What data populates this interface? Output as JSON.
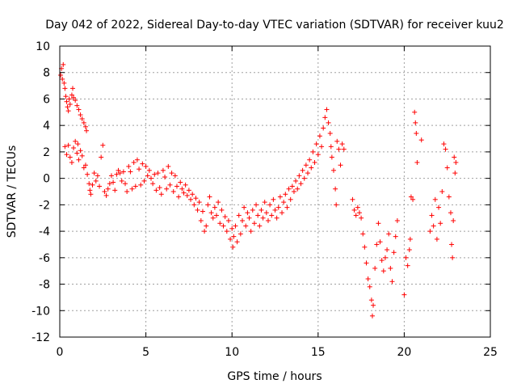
{
  "chart_data": {
    "type": "scatter",
    "title": "Day 042 of 2022, Sidereal Day-to-day VTEC variation (SDTVAR) for receiver kuu2",
    "xlabel": "GPS time / hours",
    "ylabel": "SDTVAR / TECUs",
    "xlim": [
      0,
      25
    ],
    "ylim": [
      -12,
      10
    ],
    "xticks": [
      0,
      5,
      10,
      15,
      20,
      25
    ],
    "yticks": [
      -12,
      -10,
      -8,
      -6,
      -4,
      -2,
      0,
      2,
      4,
      6,
      8,
      10
    ],
    "xtick_labels": [
      "0",
      "5",
      "10",
      "15",
      "20",
      "25"
    ],
    "ytick_labels": [
      "-12",
      "-10",
      "-8",
      "-6",
      "-4",
      "-2",
      "0",
      "2",
      "4",
      "6",
      "8",
      "10"
    ],
    "grid": true,
    "marker": "+",
    "color": "#ff0000",
    "series": [
      {
        "name": "kuu2",
        "points": [
          [
            0.05,
            7.8
          ],
          [
            0.1,
            8.3
          ],
          [
            0.15,
            7.5
          ],
          [
            0.2,
            8.6
          ],
          [
            0.25,
            7.2
          ],
          [
            0.3,
            6.8
          ],
          [
            0.35,
            6.2
          ],
          [
            0.4,
            5.8
          ],
          [
            0.45,
            5.4
          ],
          [
            0.5,
            5.1
          ],
          [
            0.55,
            6.0
          ],
          [
            0.6,
            5.6
          ],
          [
            0.7,
            6.3
          ],
          [
            0.75,
            6.8
          ],
          [
            0.8,
            6.1
          ],
          [
            0.9,
            5.9
          ],
          [
            1.0,
            5.5
          ],
          [
            1.1,
            5.2
          ],
          [
            1.2,
            4.8
          ],
          [
            1.3,
            4.5
          ],
          [
            1.4,
            4.2
          ],
          [
            1.5,
            3.9
          ],
          [
            1.55,
            3.6
          ],
          [
            0.3,
            2.4
          ],
          [
            0.4,
            1.8
          ],
          [
            0.5,
            2.5
          ],
          [
            0.6,
            1.6
          ],
          [
            0.7,
            1.2
          ],
          [
            0.8,
            2.3
          ],
          [
            0.9,
            2.8
          ],
          [
            1.0,
            1.9
          ],
          [
            1.05,
            2.6
          ],
          [
            1.1,
            1.4
          ],
          [
            1.2,
            2.1
          ],
          [
            1.3,
            1.7
          ],
          [
            1.4,
            0.8
          ],
          [
            1.5,
            1.0
          ],
          [
            1.6,
            0.3
          ],
          [
            1.7,
            -0.4
          ],
          [
            1.75,
            -0.9
          ],
          [
            1.8,
            -1.2
          ],
          [
            1.9,
            -0.5
          ],
          [
            2.0,
            0.4
          ],
          [
            2.1,
            -0.2
          ],
          [
            2.2,
            0.2
          ],
          [
            2.3,
            -0.6
          ],
          [
            2.4,
            1.6
          ],
          [
            2.5,
            2.5
          ],
          [
            2.6,
            -1.0
          ],
          [
            2.7,
            -1.3
          ],
          [
            2.8,
            -0.8
          ],
          [
            2.9,
            -0.4
          ],
          [
            3.0,
            0.2
          ],
          [
            3.1,
            -0.3
          ],
          [
            3.2,
            -0.9
          ],
          [
            3.3,
            0.3
          ],
          [
            3.4,
            0.6
          ],
          [
            3.5,
            0.4
          ],
          [
            3.6,
            -0.2
          ],
          [
            3.7,
            0.5
          ],
          [
            3.8,
            -0.4
          ],
          [
            3.9,
            -1.0
          ],
          [
            4.0,
            0.9
          ],
          [
            4.1,
            0.5
          ],
          [
            4.2,
            -0.8
          ],
          [
            4.3,
            1.2
          ],
          [
            4.4,
            -0.6
          ],
          [
            4.5,
            1.4
          ],
          [
            4.6,
            0.7
          ],
          [
            4.7,
            -0.5
          ],
          [
            4.8,
            1.1
          ],
          [
            4.9,
            -0.2
          ],
          [
            5.0,
            0.9
          ],
          [
            5.1,
            0.2
          ],
          [
            5.2,
            0.6
          ],
          [
            5.3,
            0.0
          ],
          [
            5.4,
            -0.4
          ],
          [
            5.5,
            0.3
          ],
          [
            5.6,
            -0.9
          ],
          [
            5.7,
            0.4
          ],
          [
            5.8,
            -0.7
          ],
          [
            5.9,
            -1.2
          ],
          [
            6.0,
            0.6
          ],
          [
            6.1,
            0.1
          ],
          [
            6.2,
            -0.8
          ],
          [
            6.3,
            0.9
          ],
          [
            6.4,
            -0.5
          ],
          [
            6.5,
            0.4
          ],
          [
            6.6,
            -1.0
          ],
          [
            6.7,
            0.2
          ],
          [
            6.8,
            -0.6
          ],
          [
            6.9,
            -1.4
          ],
          [
            7.0,
            -0.3
          ],
          [
            7.1,
            -0.8
          ],
          [
            7.2,
            -1.1
          ],
          [
            7.3,
            -0.5
          ],
          [
            7.4,
            -1.3
          ],
          [
            7.5,
            -0.9
          ],
          [
            7.6,
            -1.6
          ],
          [
            7.7,
            -1.2
          ],
          [
            7.8,
            -2.0
          ],
          [
            7.9,
            -1.5
          ],
          [
            8.0,
            -2.4
          ],
          [
            8.1,
            -1.8
          ],
          [
            8.2,
            -3.2
          ],
          [
            8.3,
            -2.5
          ],
          [
            8.4,
            -4.0
          ],
          [
            8.5,
            -3.6
          ],
          [
            8.6,
            -2.0
          ],
          [
            8.7,
            -1.4
          ],
          [
            8.8,
            -2.6
          ],
          [
            8.9,
            -3.0
          ],
          [
            9.0,
            -2.2
          ],
          [
            9.1,
            -2.8
          ],
          [
            9.2,
            -1.8
          ],
          [
            9.3,
            -3.4
          ],
          [
            9.4,
            -2.4
          ],
          [
            9.5,
            -3.6
          ],
          [
            9.6,
            -2.9
          ],
          [
            9.7,
            -4.0
          ],
          [
            9.8,
            -3.2
          ],
          [
            9.9,
            -4.6
          ],
          [
            10.0,
            -3.8
          ],
          [
            10.05,
            -5.2
          ],
          [
            10.1,
            -4.4
          ],
          [
            10.2,
            -3.6
          ],
          [
            10.3,
            -4.8
          ],
          [
            10.4,
            -2.8
          ],
          [
            10.5,
            -4.2
          ],
          [
            10.6,
            -3.2
          ],
          [
            10.7,
            -2.2
          ],
          [
            10.8,
            -3.6
          ],
          [
            10.9,
            -2.6
          ],
          [
            11.0,
            -3.0
          ],
          [
            11.1,
            -4.0
          ],
          [
            11.2,
            -2.4
          ],
          [
            11.3,
            -3.4
          ],
          [
            11.4,
            -2.0
          ],
          [
            11.5,
            -2.8
          ],
          [
            11.6,
            -3.6
          ],
          [
            11.7,
            -2.4
          ],
          [
            11.8,
            -3.0
          ],
          [
            11.9,
            -1.8
          ],
          [
            12.0,
            -2.6
          ],
          [
            12.1,
            -3.2
          ],
          [
            12.2,
            -2.0
          ],
          [
            12.3,
            -2.8
          ],
          [
            12.4,
            -1.6
          ],
          [
            12.5,
            -2.4
          ],
          [
            12.6,
            -3.0
          ],
          [
            12.7,
            -2.2
          ],
          [
            12.8,
            -1.4
          ],
          [
            12.9,
            -2.6
          ],
          [
            13.0,
            -1.8
          ],
          [
            13.1,
            -1.2
          ],
          [
            13.2,
            -2.2
          ],
          [
            13.3,
            -0.8
          ],
          [
            13.4,
            -1.6
          ],
          [
            13.5,
            -0.6
          ],
          [
            13.6,
            -1.0
          ],
          [
            13.7,
            -0.2
          ],
          [
            13.8,
            -0.8
          ],
          [
            13.9,
            0.2
          ],
          [
            14.0,
            -0.4
          ],
          [
            14.1,
            0.6
          ],
          [
            14.2,
            0.0
          ],
          [
            14.3,
            1.0
          ],
          [
            14.4,
            0.4
          ],
          [
            14.5,
            1.4
          ],
          [
            14.6,
            0.8
          ],
          [
            14.7,
            2.0
          ],
          [
            14.8,
            1.2
          ],
          [
            14.9,
            2.6
          ],
          [
            15.0,
            1.8
          ],
          [
            15.1,
            3.2
          ],
          [
            15.2,
            2.4
          ],
          [
            15.3,
            3.8
          ],
          [
            15.4,
            4.6
          ],
          [
            15.5,
            5.2
          ],
          [
            15.6,
            4.2
          ],
          [
            15.7,
            3.4
          ],
          [
            15.75,
            2.4
          ],
          [
            15.8,
            1.6
          ],
          [
            15.9,
            0.6
          ],
          [
            16.0,
            -0.8
          ],
          [
            16.05,
            -2.0
          ],
          [
            16.1,
            2.8
          ],
          [
            16.2,
            2.2
          ],
          [
            16.3,
            1.0
          ],
          [
            16.4,
            2.6
          ],
          [
            16.5,
            2.2
          ],
          [
            17.0,
            -1.6
          ],
          [
            17.1,
            -2.4
          ],
          [
            17.2,
            -2.8
          ],
          [
            17.3,
            -2.2
          ],
          [
            17.4,
            -2.6
          ],
          [
            17.5,
            -3.0
          ],
          [
            17.6,
            -4.2
          ],
          [
            17.7,
            -5.2
          ],
          [
            17.8,
            -6.4
          ],
          [
            17.9,
            -7.6
          ],
          [
            18.0,
            -8.2
          ],
          [
            18.1,
            -9.2
          ],
          [
            18.15,
            -10.4
          ],
          [
            18.2,
            -9.6
          ],
          [
            18.3,
            -6.8
          ],
          [
            18.4,
            -5.0
          ],
          [
            18.5,
            -3.4
          ],
          [
            18.6,
            -4.8
          ],
          [
            18.7,
            -6.2
          ],
          [
            18.8,
            -7.0
          ],
          [
            18.9,
            -6.0
          ],
          [
            19.0,
            -5.4
          ],
          [
            19.1,
            -4.2
          ],
          [
            19.2,
            -6.8
          ],
          [
            19.3,
            -7.8
          ],
          [
            19.4,
            -5.6
          ],
          [
            19.5,
            -4.4
          ],
          [
            19.6,
            -3.2
          ],
          [
            20.0,
            -8.8
          ],
          [
            20.1,
            -6.0
          ],
          [
            20.2,
            -6.6
          ],
          [
            20.3,
            -5.4
          ],
          [
            20.35,
            -4.6
          ],
          [
            20.4,
            -1.4
          ],
          [
            20.5,
            -1.6
          ],
          [
            20.6,
            5.0
          ],
          [
            20.65,
            4.2
          ],
          [
            20.7,
            3.4
          ],
          [
            20.75,
            1.2
          ],
          [
            21.0,
            2.9
          ],
          [
            21.5,
            -4.0
          ],
          [
            21.6,
            -2.8
          ],
          [
            21.7,
            -3.6
          ],
          [
            21.8,
            -1.6
          ],
          [
            21.9,
            -4.6
          ],
          [
            22.0,
            -2.2
          ],
          [
            22.1,
            -3.4
          ],
          [
            22.2,
            -1.0
          ],
          [
            22.3,
            2.6
          ],
          [
            22.4,
            2.2
          ],
          [
            22.5,
            0.8
          ],
          [
            22.6,
            -1.4
          ],
          [
            22.7,
            -2.6
          ],
          [
            22.75,
            -5.0
          ],
          [
            22.8,
            -6.0
          ],
          [
            22.85,
            -3.2
          ],
          [
            22.9,
            1.6
          ],
          [
            22.95,
            0.4
          ],
          [
            23.0,
            1.2
          ]
        ]
      }
    ]
  }
}
